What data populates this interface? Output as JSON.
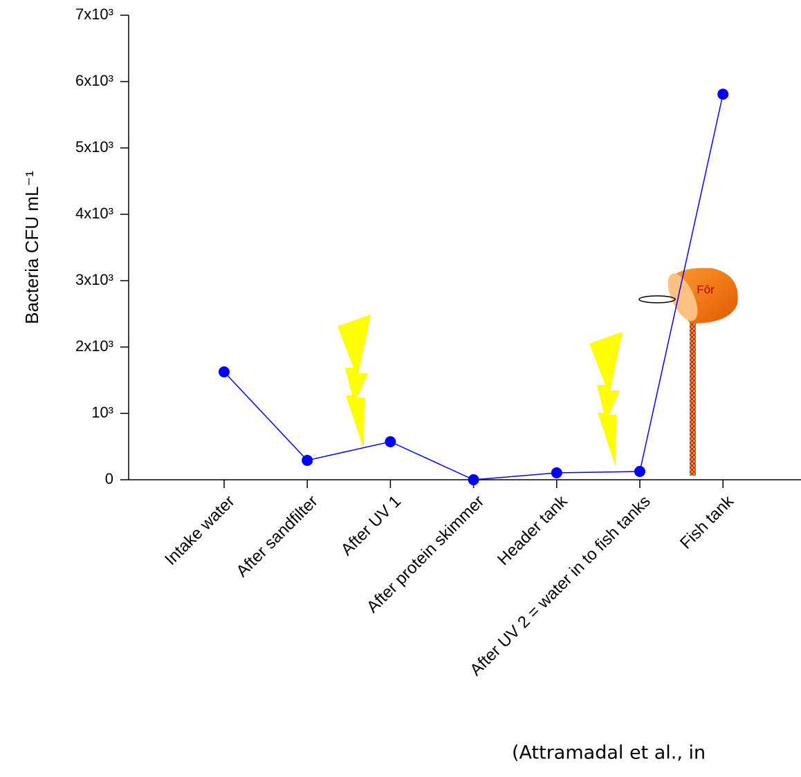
{
  "chart_data": {
    "type": "line",
    "y_label": "Bacteria CFU mL⁻¹",
    "annotation": "(Attramadal et al., in",
    "feed_label": "Fôr",
    "categories": [
      "Intake water",
      "After sandfilter",
      "After UV 1",
      "After protein skimmer",
      "Header tank",
      "After UV 2 = water in to fish tanks",
      "Fish tank"
    ],
    "series": [
      {
        "color": "#0000ff",
        "values": [
          1625,
          292,
          573,
          0,
          104,
          125,
          5810
        ]
      }
    ],
    "ylim": [
      0,
      7000
    ],
    "yticks": [
      0,
      {
        "value": 1000,
        "label": "10³"
      },
      {
        "value": 2000,
        "label": "2x10³"
      },
      {
        "value": 3000,
        "label": "3x10³"
      },
      {
        "value": 4000,
        "label": "4x10³"
      },
      {
        "value": 5000,
        "label": "5x10³"
      },
      {
        "value": 6000,
        "label": "6x10³"
      },
      {
        "value": 7000,
        "label": "7x10³"
      }
    ]
  }
}
